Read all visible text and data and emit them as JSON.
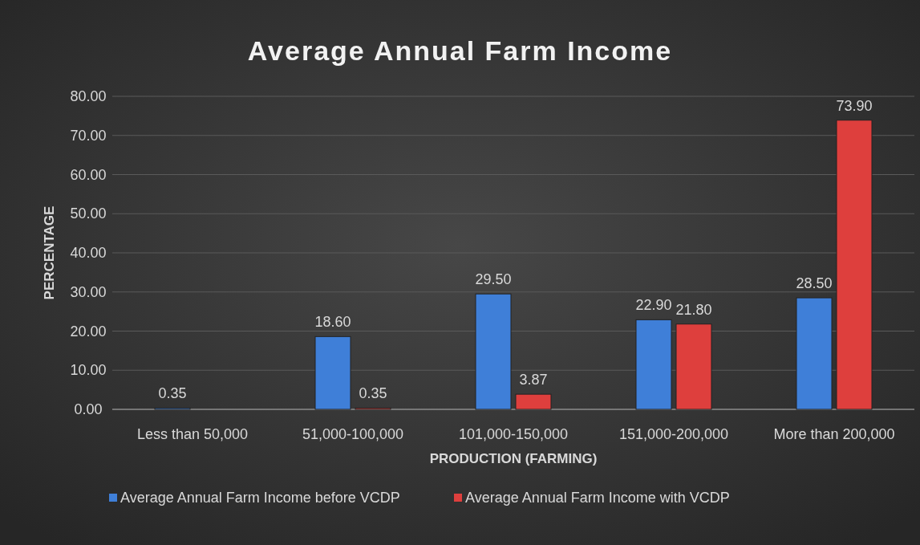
{
  "chart_data": {
    "type": "bar",
    "title": "Average Annual Farm Income",
    "xlabel": "PRODUCTION (FARMING)",
    "ylabel": "PERCENTAGE",
    "categories": [
      "Less than 50,000",
      "51,000-100,000",
      "101,000-150,000",
      "151,000-200,000",
      "More than 200,000"
    ],
    "series": [
      {
        "name": "Average Annual Farm Income before VCDP",
        "color": "#3f7fd8",
        "values": [
          0.35,
          18.6,
          29.5,
          22.9,
          28.5
        ],
        "value_labels": [
          "0.35",
          "18.60",
          "29.50",
          "22.90",
          "28.50"
        ]
      },
      {
        "name": "Average Annual Farm Income with VCDP",
        "color": "#de3f3d",
        "values": [
          null,
          0.35,
          3.87,
          21.8,
          73.9
        ],
        "value_labels": [
          null,
          "0.35",
          "3.87",
          "21.80",
          "73.90"
        ]
      }
    ],
    "ylim": [
      0,
      80
    ],
    "yticks": [
      {
        "value": 0,
        "label": "0.00"
      },
      {
        "value": 10,
        "label": "10.00"
      },
      {
        "value": 20,
        "label": "20.00"
      },
      {
        "value": 30,
        "label": "30.00"
      },
      {
        "value": 40,
        "label": "40.00"
      },
      {
        "value": 50,
        "label": "50.00"
      },
      {
        "value": 60,
        "label": "60.00"
      },
      {
        "value": 70,
        "label": "70.00"
      },
      {
        "value": 80,
        "label": "80.00"
      }
    ],
    "grid": "y",
    "legend": "bottom"
  }
}
